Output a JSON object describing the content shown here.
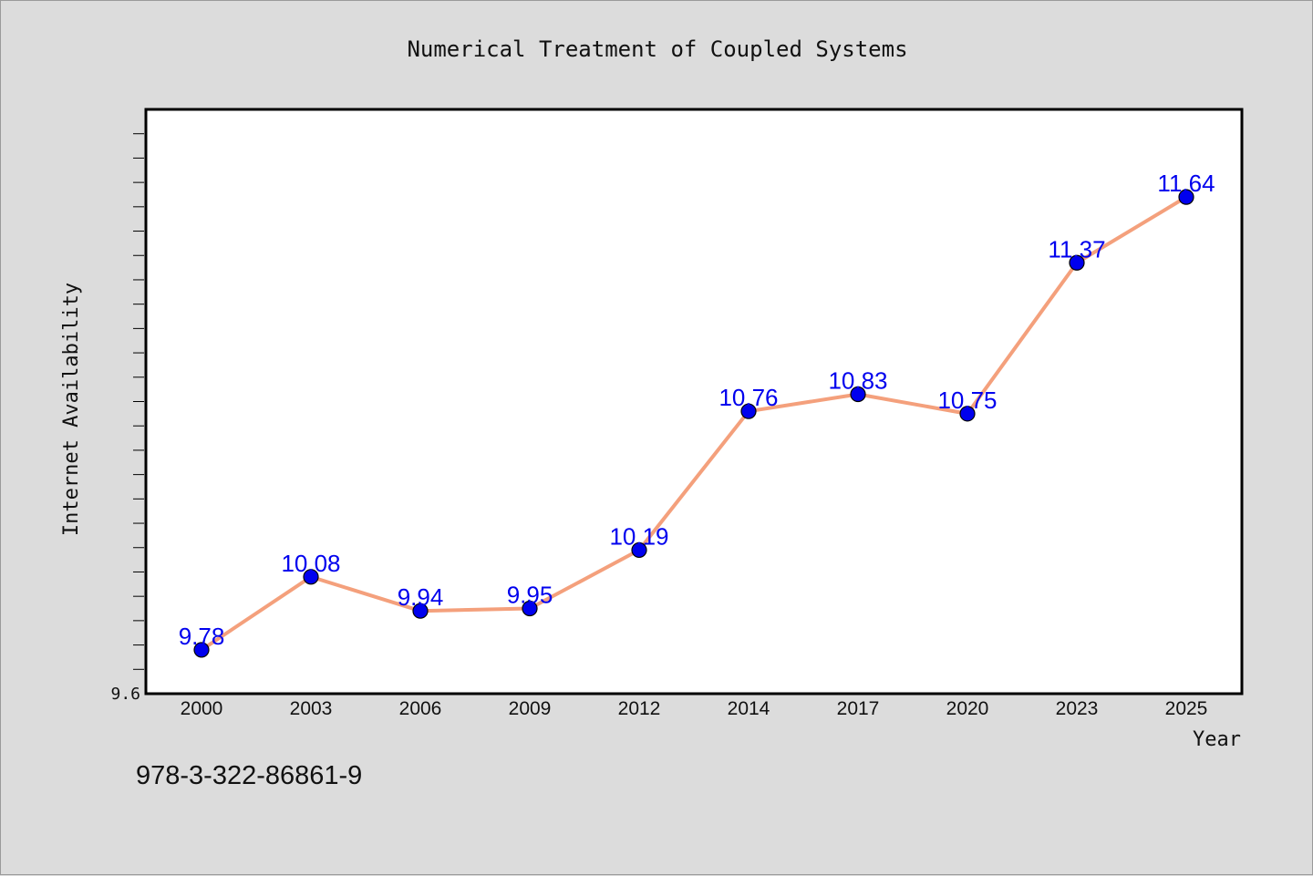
{
  "chart_data": {
    "type": "line",
    "title": "Numerical Treatment of Coupled Systems",
    "xlabel": "Year",
    "ylabel": "Internet Availability",
    "categories": [
      "2000",
      "2003",
      "2006",
      "2009",
      "2012",
      "2014",
      "2017",
      "2020",
      "2023",
      "2025"
    ],
    "series": [
      {
        "values": [
          9.78,
          10.08,
          9.94,
          9.95,
          10.19,
          10.76,
          10.83,
          10.75,
          11.37,
          11.64
        ],
        "labels": [
          "9.78",
          "10.08",
          "9.94",
          "9.95",
          "10.19",
          "10.76",
          "10.83",
          "10.75",
          "11.37",
          "11.64"
        ],
        "line_color": "#f4a07c",
        "marker_color": "#0000ee"
      }
    ],
    "ylim": [
      9.6,
      12.0
    ],
    "y_tick_labels": [
      "9.6"
    ],
    "grid": false,
    "legend": "none"
  },
  "footer": {
    "isbn": "978-3-322-86861-9"
  },
  "colors": {
    "background": "#dcdcdc",
    "plot_background": "#ffffff",
    "label_color": "#0000ee"
  }
}
